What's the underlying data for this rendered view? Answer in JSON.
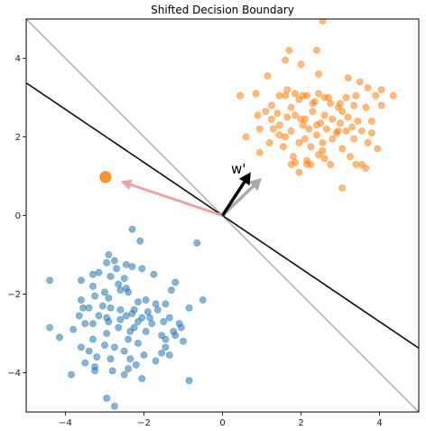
{
  "chart_data": {
    "type": "scatter",
    "title": "Shifted Decision Boundary",
    "xlim": [
      -5,
      5
    ],
    "ylim": [
      -5,
      5
    ],
    "x_ticks": [
      -4,
      -2,
      0,
      2,
      4
    ],
    "y_ticks": [
      -4,
      -2,
      0,
      2,
      4
    ],
    "x_tick_labels": [
      "−4",
      "−2",
      "0",
      "2",
      "4"
    ],
    "y_tick_labels": [
      "−4",
      "−2",
      "0",
      "2",
      "4"
    ],
    "grid": false,
    "colors": {
      "blue": "#1f77b4",
      "orange": "#ff7f0e",
      "boundary": "#000000",
      "original_boundary": "#aaaaaa",
      "w_prime": "#000000",
      "w_original": "#aaaaaa",
      "shift_arrow": "#f4a0a0"
    },
    "series": [
      {
        "points": [
          [
            -2.3,
            -0.35
          ],
          [
            -2.1,
            -0.65
          ],
          [
            -0.65,
            -0.7
          ],
          [
            -2.9,
            -1.0
          ],
          [
            -2.45,
            -1.25
          ],
          [
            -2.75,
            -1.15
          ],
          [
            -2.95,
            -1.2
          ],
          [
            -2.7,
            -1.35
          ],
          [
            -2.3,
            -1.3
          ],
          [
            -3.15,
            -1.45
          ],
          [
            -2.05,
            -1.35
          ],
          [
            -3.3,
            -1.5
          ],
          [
            -1.75,
            -1.5
          ],
          [
            -2.85,
            -1.55
          ],
          [
            -2.5,
            -1.6
          ],
          [
            -3.6,
            -1.65
          ],
          [
            -4.4,
            -1.65
          ],
          [
            -1.2,
            -1.7
          ],
          [
            -2.65,
            -1.75
          ],
          [
            -2.45,
            -1.85
          ],
          [
            -3.3,
            -1.8
          ],
          [
            -2.6,
            -1.9
          ],
          [
            -2.4,
            -1.95
          ],
          [
            -1.3,
            -1.9
          ],
          [
            -3.0,
            -1.95
          ],
          [
            -3.25,
            -2.05
          ],
          [
            -2.9,
            -2.1
          ],
          [
            -1.95,
            -2.15
          ],
          [
            -2.15,
            -2.2
          ],
          [
            -1.7,
            -2.25
          ],
          [
            -0.5,
            -2.15
          ],
          [
            -1.45,
            -2.25
          ],
          [
            -3.05,
            -2.3
          ],
          [
            -3.55,
            -2.35
          ],
          [
            -3.4,
            -2.35
          ],
          [
            -2.6,
            -2.4
          ],
          [
            -2.85,
            -2.35
          ],
          [
            -1.65,
            -2.4
          ],
          [
            -2.25,
            -2.4
          ],
          [
            -1.9,
            -2.45
          ],
          [
            -2.3,
            -2.5
          ],
          [
            -3.65,
            -2.55
          ],
          [
            -3.15,
            -2.55
          ],
          [
            -2.45,
            -2.55
          ],
          [
            -2.05,
            -2.6
          ],
          [
            -1.85,
            -2.6
          ],
          [
            -0.85,
            -2.35
          ],
          [
            -1.35,
            -2.6
          ],
          [
            -2.6,
            -2.65
          ],
          [
            -2.9,
            -2.7
          ],
          [
            -2.15,
            -2.7
          ],
          [
            -1.8,
            -2.75
          ],
          [
            -1.5,
            -2.7
          ],
          [
            -1.1,
            -2.75
          ],
          [
            -3.3,
            -2.75
          ],
          [
            -3.5,
            -2.75
          ],
          [
            -4.4,
            -2.85
          ],
          [
            -2.25,
            -2.85
          ],
          [
            -2.65,
            -2.85
          ],
          [
            -1.05,
            -2.85
          ],
          [
            -3.8,
            -2.9
          ],
          [
            -1.95,
            -2.95
          ],
          [
            -2.35,
            -2.95
          ],
          [
            -2.95,
            -3.0
          ],
          [
            -1.55,
            -3.05
          ],
          [
            -1.2,
            -3.05
          ],
          [
            -4.15,
            -3.1
          ],
          [
            -3.3,
            -3.15
          ],
          [
            -2.4,
            -3.15
          ],
          [
            -1.0,
            -3.2
          ],
          [
            -2.15,
            -3.25
          ],
          [
            -3.0,
            -3.3
          ],
          [
            -3.6,
            -3.35
          ],
          [
            -2.75,
            -3.35
          ],
          [
            -1.45,
            -3.35
          ],
          [
            -3.4,
            -3.45
          ],
          [
            -2.5,
            -3.45
          ],
          [
            -1.55,
            -3.5
          ],
          [
            -1.35,
            -3.55
          ],
          [
            -3.2,
            -3.6
          ],
          [
            -2.85,
            -3.65
          ],
          [
            -2.35,
            -3.65
          ],
          [
            -1.7,
            -3.7
          ],
          [
            -3.5,
            -3.75
          ],
          [
            -2.2,
            -3.8
          ],
          [
            -3.25,
            -3.85
          ],
          [
            -2.4,
            -3.9
          ],
          [
            -2.8,
            -3.95
          ],
          [
            -3.85,
            -4.05
          ],
          [
            -2.5,
            -4.05
          ],
          [
            -2.05,
            -4.15
          ],
          [
            -0.85,
            -4.2
          ],
          [
            -2.95,
            -4.65
          ],
          [
            -2.75,
            -4.85
          ],
          [
            -3.25,
            -3.95
          ],
          [
            -1.45,
            -3.15
          ],
          [
            -2.0,
            -3.55
          ],
          [
            -3.6,
            -2.15
          ],
          [
            -2.95,
            -2.6
          ],
          [
            -1.25,
            -2.95
          ]
        ]
      },
      {
        "points": [
          [
            2.55,
            4.95
          ],
          [
            1.7,
            4.2
          ],
          [
            2.4,
            4.2
          ],
          [
            1.6,
            3.95
          ],
          [
            2.0,
            3.85
          ],
          [
            2.45,
            3.6
          ],
          [
            1.15,
            3.55
          ],
          [
            3.2,
            3.5
          ],
          [
            3.5,
            3.4
          ],
          [
            1.65,
            3.2
          ],
          [
            3.7,
            3.25
          ],
          [
            0.85,
            3.1
          ],
          [
            2.05,
            3.05
          ],
          [
            2.45,
            3.1
          ],
          [
            2.15,
            3.05
          ],
          [
            1.45,
            3.05
          ],
          [
            1.6,
            3.05
          ],
          [
            1.85,
            3.1
          ],
          [
            4.35,
            3.05
          ],
          [
            2.6,
            3.0
          ],
          [
            3.15,
            3.0
          ],
          [
            4.05,
            3.2
          ],
          [
            0.45,
            3.05
          ],
          [
            3.4,
            3.05
          ],
          [
            3.9,
            3.05
          ],
          [
            2.3,
            2.85
          ],
          [
            1.25,
            2.8
          ],
          [
            2.75,
            2.85
          ],
          [
            3.35,
            2.8
          ],
          [
            1.75,
            2.75
          ],
          [
            2.95,
            2.75
          ],
          [
            3.65,
            2.75
          ],
          [
            1.1,
            2.65
          ],
          [
            2.3,
            2.65
          ],
          [
            3.05,
            2.65
          ],
          [
            1.4,
            2.6
          ],
          [
            4.05,
            2.8
          ],
          [
            0.9,
            2.55
          ],
          [
            1.85,
            2.55
          ],
          [
            2.6,
            2.55
          ],
          [
            3.2,
            2.5
          ],
          [
            1.65,
            2.5
          ],
          [
            2.1,
            2.45
          ],
          [
            2.8,
            2.45
          ],
          [
            3.45,
            2.4
          ],
          [
            3.8,
            2.4
          ],
          [
            2.5,
            2.35
          ],
          [
            3.0,
            2.35
          ],
          [
            1.45,
            2.3
          ],
          [
            2.05,
            2.3
          ],
          [
            2.4,
            2.3
          ],
          [
            3.3,
            2.25
          ],
          [
            1.3,
            2.2
          ],
          [
            2.2,
            2.2
          ],
          [
            2.65,
            2.2
          ],
          [
            0.95,
            2.2
          ],
          [
            1.75,
            2.15
          ],
          [
            2.95,
            2.15
          ],
          [
            3.15,
            2.15
          ],
          [
            3.55,
            2.15
          ],
          [
            1.45,
            2.05
          ],
          [
            2.4,
            2.05
          ],
          [
            3.8,
            2.1
          ],
          [
            0.6,
            2.0
          ],
          [
            2.1,
            1.95
          ],
          [
            2.8,
            1.95
          ],
          [
            3.35,
            1.95
          ],
          [
            1.95,
            1.85
          ],
          [
            1.2,
            1.85
          ],
          [
            2.55,
            1.85
          ],
          [
            3.7,
            1.85
          ],
          [
            1.55,
            1.75
          ],
          [
            2.25,
            1.75
          ],
          [
            3.05,
            1.7
          ],
          [
            3.95,
            1.7
          ],
          [
            0.95,
            1.6
          ],
          [
            1.8,
            1.5
          ],
          [
            2.45,
            1.55
          ],
          [
            3.25,
            1.5
          ],
          [
            2.15,
            1.4
          ],
          [
            2.6,
            1.45
          ],
          [
            1.85,
            1.35
          ],
          [
            1.75,
            1.3
          ],
          [
            2.15,
            1.3
          ],
          [
            2.25,
            1.3
          ],
          [
            3.4,
            1.3
          ],
          [
            3.55,
            1.3
          ],
          [
            3.65,
            1.2
          ],
          [
            1.95,
            1.1
          ],
          [
            2.75,
            1.3
          ],
          [
            3.05,
            0.7
          ],
          [
            2.9,
            2.1
          ],
          [
            2.35,
            2.9
          ],
          [
            1.95,
            2.95
          ],
          [
            2.7,
            3.0
          ],
          [
            2.0,
            2.45
          ],
          [
            1.6,
            2.0
          ],
          [
            2.55,
            1.65
          ],
          [
            3.0,
            2.85
          ],
          [
            1.25,
            2.45
          ]
        ]
      }
    ],
    "highlight_point": [
      -2.98,
      0.98
    ],
    "lines": {
      "boundary": {
        "slope": -0.675,
        "intercept": 0.0
      },
      "original_boundary": {
        "slope": -1.0,
        "intercept": 0.0
      }
    },
    "vectors": {
      "w_original": [
        1.0,
        0.95
      ],
      "w_prime": [
        0.72,
        1.1
      ],
      "shift": [
        -2.6,
        0.87
      ]
    },
    "annotation": "w'"
  }
}
